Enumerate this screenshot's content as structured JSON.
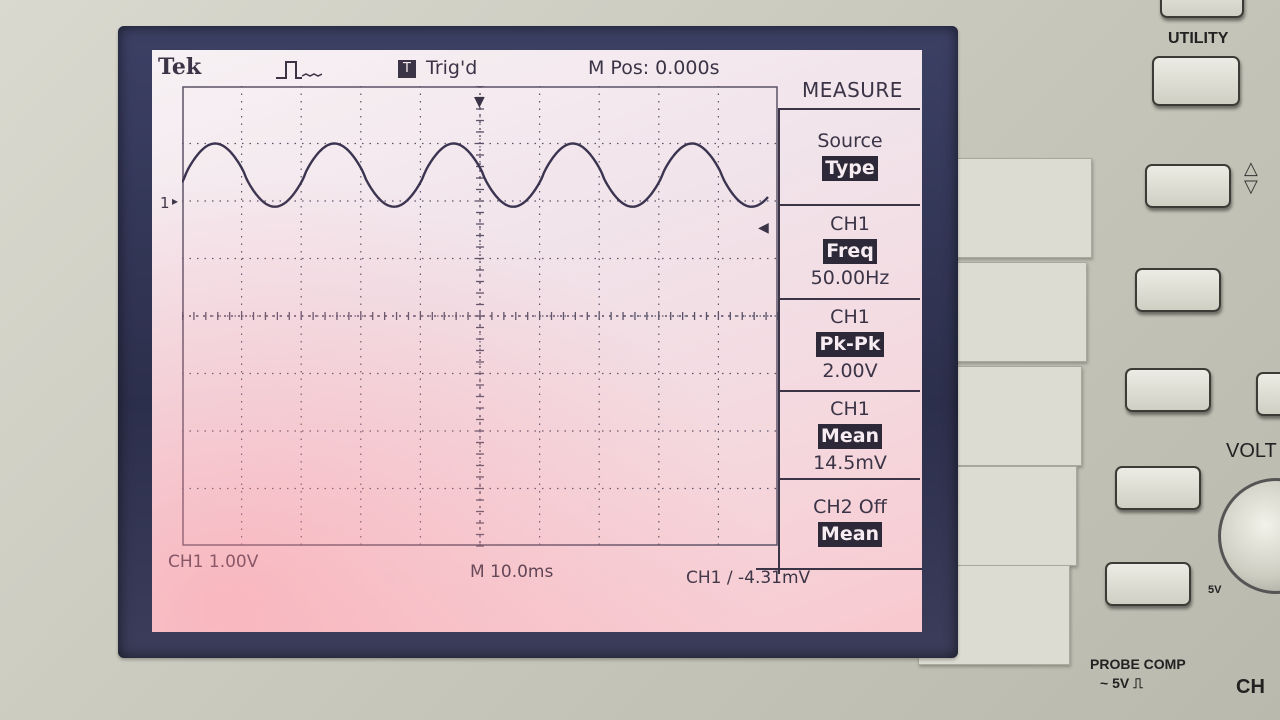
{
  "screen": {
    "brand": "Tek",
    "trigger_state": "Trig'd",
    "trigger_icon": "T",
    "m_pos": "M Pos: 0.000s",
    "ch1_scale": "CH1  1.00V",
    "timebase": "M 10.0ms",
    "trigger_level": "CH1  ∕  -4.31mV",
    "ch1_marker": "1",
    "measure_menu": {
      "title": "MEASURE",
      "source": {
        "label": "Source",
        "value": "Type"
      },
      "items": [
        {
          "channel": "CH1",
          "type": "Freq",
          "value": "50.00Hz"
        },
        {
          "channel": "CH1",
          "type": "Pk-Pk",
          "value": "2.00V"
        },
        {
          "channel": "CH1",
          "type": "Mean",
          "value": "14.5mV"
        },
        {
          "channel": "CH2 Off",
          "type": "Mean",
          "value": ""
        }
      ]
    }
  },
  "waveform": {
    "frequency_hz": 50,
    "peak_to_peak_v": 2.0,
    "volts_per_div": 1.0,
    "time_per_div_ms": 10.0
  },
  "panel": {
    "utility_label": "UTILITY",
    "volts_label": "VOLT",
    "probe_comp_label": "PROBE COMP",
    "probe_comp_value": "~ 5V ⎍",
    "ch_label": "CH",
    "five_v_label": "5V"
  }
}
